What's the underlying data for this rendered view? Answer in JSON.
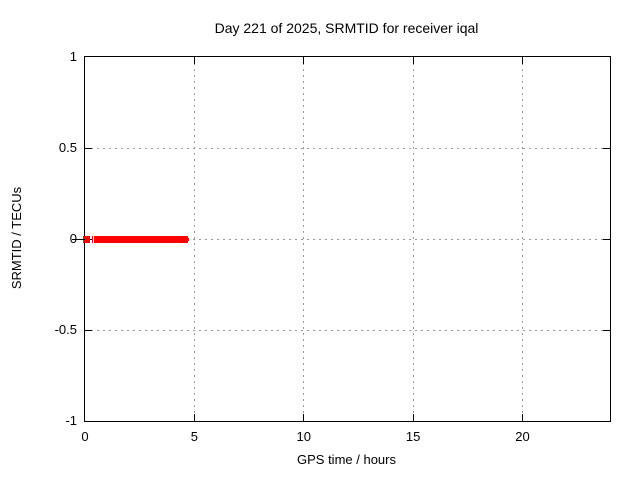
{
  "figure": {
    "background": "#ffffff",
    "text_color": "#000000"
  },
  "chart_data": {
    "type": "line",
    "title": "Day 221 of 2025, SRMTID for receiver iqal",
    "xlabel": "GPS time / hours",
    "ylabel": "SRMTID / TECUs",
    "xlim": [
      0,
      24
    ],
    "ylim": [
      -1,
      1
    ],
    "xticks": [
      0,
      5,
      10,
      15,
      20
    ],
    "yticks": [
      1,
      0.5,
      0,
      -0.5,
      -1
    ],
    "grid": true,
    "grid_color": "#9a9a9a",
    "border_color": "#000000",
    "legend_position": "none",
    "series": [
      {
        "name": "SRMTID",
        "color": "#ff0000",
        "y_value": 0,
        "x_start_hours": 0,
        "x_end_hours": 4.7,
        "line_thickness_px": 7,
        "visible_runs": [
          {
            "start": -0.09,
            "end": 0.22,
            "y": 0
          },
          {
            "start": 0.3,
            "end": 0.36,
            "y": 0
          },
          {
            "start": 0.42,
            "end": 4.72,
            "y": 0
          }
        ],
        "thin_segments": [
          {
            "start": 4.62,
            "end": 4.76,
            "y": 0
          }
        ]
      }
    ],
    "zero_left_outward_tick": true
  }
}
